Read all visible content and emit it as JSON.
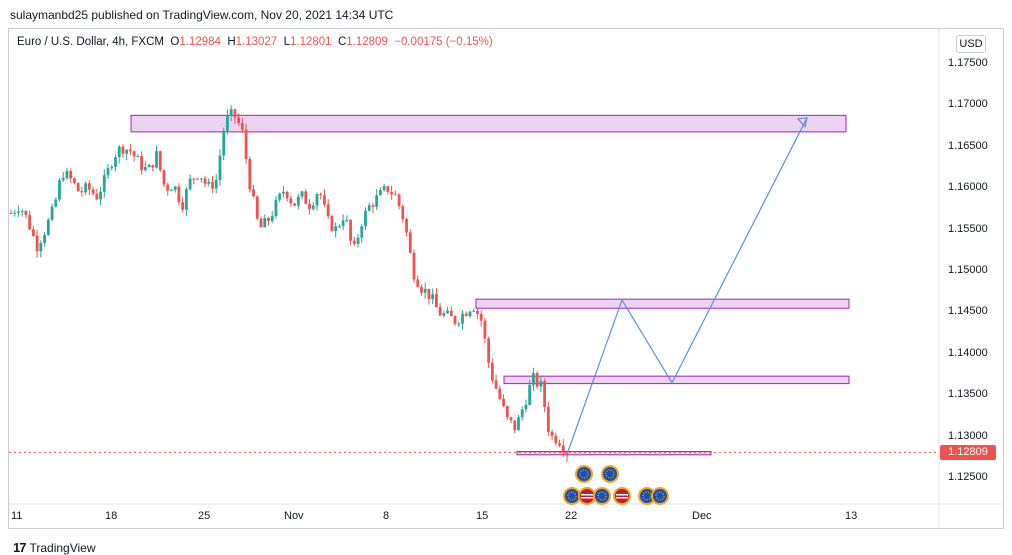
{
  "header": {
    "publish_line": "sulaymanbd25 published on TradingView.com, Nov 20, 2021 14:34 UTC"
  },
  "legend": {
    "symbol": "Euro / U.S. Dollar, 4h, FXCM",
    "o_label": "O",
    "o": "1.12984",
    "h_label": "H",
    "h": "1.13027",
    "l_label": "L",
    "l": "1.12801",
    "c_label": "C",
    "c": "1.12809",
    "change": "−0.00175 (−0.15%)"
  },
  "currency_button": "USD",
  "price_axis": [
    "1.17500",
    "1.17000",
    "1.16500",
    "1.16000",
    "1.15500",
    "1.15000",
    "1.14500",
    "1.14000",
    "1.13500",
    "1.13000",
    "1.12500"
  ],
  "current_price": "1.12809",
  "time_axis": [
    "11",
    "18",
    "25",
    "Nov",
    "8",
    "15",
    "22",
    "Dec",
    "13"
  ],
  "footer": {
    "brand": "TradingView",
    "logo_glyph": "17"
  },
  "colors": {
    "up": "#26a69a",
    "down": "#ef5350",
    "zone_fill": "#e7c8ef",
    "zone_stroke": "#9c27b0",
    "projection": "#5b8fd6"
  },
  "chart_data": {
    "type": "candlestick",
    "symbol": "EURUSD",
    "timeframe": "4h",
    "ylim": [
      1.1215,
      1.1785
    ],
    "x": [
      "11",
      "18",
      "25",
      "Nov",
      "8",
      "15",
      "22",
      "Dec",
      "13"
    ],
    "close_path": [
      1.157,
      1.158,
      1.156,
      1.153,
      1.155,
      1.1575,
      1.162,
      1.161,
      1.1595,
      1.16,
      1.159,
      1.161,
      1.164,
      1.165,
      1.1645,
      1.163,
      1.162,
      1.164,
      1.16,
      1.1605,
      1.158,
      1.161,
      1.162,
      1.16,
      1.161,
      1.168,
      1.169,
      1.167,
      1.16,
      1.155,
      1.156,
      1.158,
      1.16,
      1.158,
      1.159,
      1.158,
      1.16,
      1.156,
      1.155,
      1.157,
      1.152,
      1.156,
      1.158,
      1.159,
      1.16,
      1.159,
      1.156,
      1.15,
      1.148,
      1.147,
      1.145,
      1.1445,
      1.144,
      1.145,
      1.146,
      1.144,
      1.138,
      1.135,
      1.132,
      1.131,
      1.134,
      1.137,
      1.136,
      1.13,
      1.1298,
      1.1281
    ],
    "support_resistance_zones": [
      {
        "low": 1.1668,
        "high": 1.1688
      },
      {
        "low": 1.1455,
        "high": 1.1466
      },
      {
        "low": 1.1364,
        "high": 1.1373
      },
      {
        "low": 1.1278,
        "high": 1.1282
      }
    ],
    "projection_path": [
      1.1282,
      1.1465,
      1.1365,
      1.1685
    ]
  }
}
